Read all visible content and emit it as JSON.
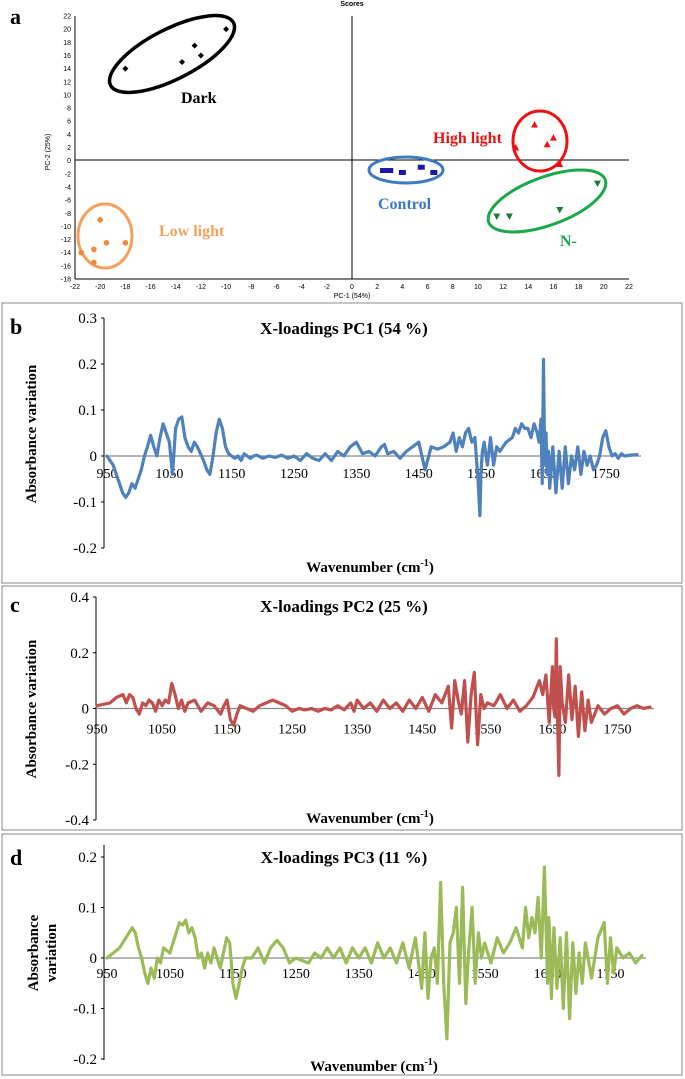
{
  "figure": {
    "panels": [
      "a",
      "b",
      "c",
      "d"
    ]
  },
  "chart_data": [
    {
      "type": "scatter",
      "panel": "a",
      "title": "Scores",
      "xlabel": "PC-1 (54%)",
      "ylabel": "PC-2 (25%)",
      "xlim": [
        -22,
        22
      ],
      "ylim": [
        -18,
        22
      ],
      "xticks": [
        -22,
        -20,
        -18,
        -16,
        -14,
        -12,
        -10,
        -8,
        -6,
        -4,
        -2,
        0,
        2,
        4,
        6,
        8,
        10,
        12,
        14,
        16,
        18,
        20,
        22
      ],
      "yticks": [
        22,
        20,
        18,
        16,
        14,
        12,
        10,
        8,
        6,
        4,
        2,
        0,
        -2,
        -4,
        -6,
        -8,
        -10,
        -12,
        -14,
        -16,
        -18
      ],
      "series": [
        {
          "name": "Dark",
          "color": "#000000",
          "marker": "diamond",
          "x": [
            -18,
            -13.5,
            -12.5,
            -12,
            -10
          ],
          "y": [
            14,
            15,
            17.5,
            16,
            20
          ]
        },
        {
          "name": "High light",
          "color": "#ee1111",
          "marker": "triangle-up",
          "x": [
            13,
            14.5,
            15.5,
            16,
            16.5
          ],
          "y": [
            2,
            5.5,
            2.5,
            3.5,
            -0.5
          ]
        },
        {
          "name": "Control",
          "color": "#1a1aa6",
          "marker": "square",
          "x": [
            2.5,
            3,
            4,
            5.5,
            6.5
          ],
          "y": [
            -1.5,
            -1.5,
            -1.8,
            -1,
            -1.8
          ]
        },
        {
          "name": "Low light",
          "color": "#f08a3a",
          "marker": "circle",
          "x": [
            -21.5,
            -20.5,
            -20.5,
            -20,
            -19.5,
            -18
          ],
          "y": [
            -14,
            -15.5,
            -13.5,
            -9,
            -12.5,
            -12.5
          ]
        },
        {
          "name": "N-",
          "color": "#1e7a3a",
          "marker": "triangle-down",
          "x": [
            11.5,
            12.5,
            16.5,
            19.5
          ],
          "y": [
            -8.5,
            -8.5,
            -7.5,
            -3.5
          ]
        }
      ],
      "labels": [
        "Dark",
        "High light",
        "Control",
        "Low light",
        "N-"
      ]
    },
    {
      "type": "line",
      "panel": "b",
      "title": "X-loadings PC1 (54 %)",
      "xlabel": "Wavenumber (cm",
      "xlabel_sup": "-1",
      "xlabel_close": ")",
      "ylabel": "Absorbance variation",
      "color": "#4f81bd",
      "xlim": [
        950,
        1800
      ],
      "ylim": [
        -0.2,
        0.3
      ],
      "xticks": [
        950,
        1050,
        1150,
        1250,
        1350,
        1450,
        1550,
        1650,
        1750
      ],
      "yticks": [
        "0.3",
        "0.2",
        "0.1",
        "0",
        "-0.1",
        "-0.2"
      ],
      "x": [
        950,
        960,
        970,
        975,
        980,
        985,
        990,
        995,
        1000,
        1005,
        1010,
        1015,
        1020,
        1025,
        1030,
        1035,
        1040,
        1045,
        1050,
        1055,
        1060,
        1065,
        1070,
        1075,
        1080,
        1085,
        1090,
        1095,
        1100,
        1105,
        1110,
        1115,
        1120,
        1125,
        1130,
        1135,
        1140,
        1145,
        1150,
        1155,
        1160,
        1165,
        1170,
        1175,
        1180,
        1185,
        1190,
        1200,
        1210,
        1220,
        1230,
        1240,
        1250,
        1260,
        1270,
        1280,
        1290,
        1300,
        1310,
        1320,
        1330,
        1340,
        1350,
        1360,
        1370,
        1380,
        1390,
        1395,
        1400,
        1410,
        1420,
        1430,
        1440,
        1450,
        1460,
        1470,
        1480,
        1490,
        1500,
        1505,
        1510,
        1515,
        1520,
        1525,
        1530,
        1535,
        1540,
        1545,
        1548,
        1550,
        1552,
        1555,
        1560,
        1565,
        1570,
        1575,
        1580,
        1590,
        1600,
        1605,
        1610,
        1615,
        1620,
        1625,
        1630,
        1635,
        1640,
        1643,
        1646,
        1648,
        1650,
        1652,
        1654,
        1656,
        1658,
        1660,
        1665,
        1670,
        1675,
        1680,
        1685,
        1690,
        1695,
        1700,
        1705,
        1710,
        1715,
        1720,
        1725,
        1730,
        1735,
        1740,
        1745,
        1750,
        1755,
        1760,
        1765,
        1770,
        1775,
        1780,
        1790,
        1800
      ],
      "y": [
        0,
        -0.02,
        -0.06,
        -0.08,
        -0.09,
        -0.08,
        -0.06,
        -0.07,
        -0.05,
        -0.03,
        0,
        0.02,
        0.045,
        0.02,
        0,
        0.04,
        0.07,
        0.05,
        0.03,
        -0.04,
        0.06,
        0.08,
        0.085,
        0.04,
        0.02,
        0.01,
        0.03,
        0.02,
        0.005,
        -0.01,
        -0.03,
        -0.04,
        0,
        0.05,
        0.08,
        0.06,
        0.02,
        0.005,
        0,
        -0.005,
        0,
        -0.01,
        0.005,
        0,
        -0.005,
        0,
        0.002,
        -0.005,
        0,
        -0.003,
        0.002,
        -0.005,
        0,
        -0.01,
        0.005,
        -0.005,
        -0.01,
        0.005,
        -0.01,
        0.01,
        0,
        0.02,
        0.03,
        0.005,
        0.01,
        0,
        0.02,
        0.025,
        0.005,
        0.01,
        -0.005,
        0.01,
        0.02,
        0.03,
        -0.03,
        0.02,
        0.015,
        0.02,
        0.03,
        0.05,
        0.01,
        0.04,
        0.02,
        0.05,
        0.06,
        0.03,
        0.04,
        -0.05,
        -0.13,
        -0.03,
        0.01,
        0.03,
        -0.02,
        0.04,
        -0.02,
        0.02,
        0.01,
        0.03,
        0.04,
        0.06,
        0.05,
        0.07,
        0.06,
        0.06,
        0.04,
        0.07,
        0.05,
        0.03,
        0.08,
        -0.06,
        0.21,
        -0.02,
        0.05,
        -0.04,
        0.01,
        -0.07,
        0.02,
        -0.08,
        0.01,
        -0.07,
        0.02,
        -0.06,
        0,
        -0.03,
        0.02,
        -0.04,
        0.01,
        -0.02,
        0,
        -0.03,
        -0.02,
        0,
        0.04,
        0.055,
        0.02,
        0,
        0.005,
        -0.005,
        0.005,
        0,
        0.002,
        0.003
      ]
    },
    {
      "type": "line",
      "panel": "c",
      "title": "X-loadings PC2 (25 %)",
      "xlabel": "Wavenumber (cm",
      "xlabel_sup": "-1",
      "xlabel_close": ")",
      "ylabel": "Absorbance variation",
      "color": "#c0504d",
      "xlim": [
        950,
        1800
      ],
      "ylim": [
        -0.4,
        0.4
      ],
      "xticks": [
        950,
        1050,
        1150,
        1250,
        1350,
        1450,
        1550,
        1650,
        1750
      ],
      "yticks": [
        "0.4",
        "0.2",
        "0",
        "-0.2",
        "-0.4"
      ],
      "x": [
        950,
        960,
        970,
        980,
        990,
        995,
        1000,
        1005,
        1010,
        1015,
        1020,
        1025,
        1030,
        1035,
        1040,
        1045,
        1050,
        1055,
        1060,
        1065,
        1070,
        1075,
        1080,
        1085,
        1090,
        1100,
        1110,
        1120,
        1130,
        1140,
        1145,
        1150,
        1155,
        1160,
        1165,
        1170,
        1180,
        1190,
        1200,
        1210,
        1220,
        1230,
        1240,
        1250,
        1260,
        1270,
        1280,
        1290,
        1300,
        1310,
        1320,
        1330,
        1340,
        1345,
        1350,
        1360,
        1370,
        1380,
        1390,
        1400,
        1410,
        1420,
        1430,
        1440,
        1450,
        1460,
        1470,
        1480,
        1490,
        1495,
        1500,
        1505,
        1510,
        1515,
        1520,
        1525,
        1530,
        1535,
        1540,
        1545,
        1550,
        1560,
        1570,
        1580,
        1590,
        1600,
        1610,
        1620,
        1630,
        1635,
        1640,
        1645,
        1650,
        1652,
        1654,
        1656,
        1658,
        1660,
        1662,
        1665,
        1670,
        1675,
        1680,
        1685,
        1690,
        1695,
        1700,
        1705,
        1710,
        1720,
        1730,
        1740,
        1750,
        1760,
        1770,
        1780,
        1790,
        1800
      ],
      "y": [
        0.01,
        0.015,
        0.02,
        0.04,
        0.05,
        0.02,
        0.05,
        0.04,
        0,
        -0.02,
        0.02,
        0.01,
        0.03,
        0.02,
        -0.01,
        0.03,
        0.01,
        0.03,
        0.02,
        0.09,
        0.05,
        0,
        0.03,
        -0.01,
        0.02,
        0.03,
        -0.01,
        0.02,
        0.01,
        -0.02,
        0.01,
        0.03,
        -0.04,
        -0.06,
        -0.02,
        0.01,
        0,
        -0.01,
        0.01,
        0.02,
        0.03,
        0.02,
        0.01,
        -0.01,
        0,
        -0.005,
        0,
        -0.01,
        0,
        -0.005,
        0.01,
        -0.005,
        0.02,
        -0.01,
        0.03,
        0,
        0.02,
        -0.01,
        0.03,
        0,
        0.02,
        -0.01,
        0.03,
        0,
        0.04,
        -0.01,
        0.05,
        0.02,
        0.08,
        -0.07,
        0.1,
        0.03,
        -0.02,
        0.1,
        -0.12,
        0.05,
        0.13,
        -0.13,
        0.05,
        0,
        0.02,
        0.01,
        0.05,
        0,
        0.03,
        -0.01,
        0.01,
        0.04,
        0.1,
        0.05,
        0.12,
        -0.05,
        0.15,
        0,
        -0.03,
        0.25,
        -0.05,
        -0.24,
        0.15,
        0.02,
        -0.05,
        0.12,
        -0.04,
        0.08,
        -0.1,
        0.06,
        -0.08,
        0.03,
        -0.05,
        0.01,
        -0.02,
        0,
        0.01,
        -0.02,
        0,
        0.01,
        0,
        0.005
      ]
    },
    {
      "type": "line",
      "panel": "d",
      "title": "X-loadings PC3 (11 %)",
      "xlabel": "Wavenumber (cm",
      "xlabel_sup": "-1",
      "xlabel_close": ")",
      "ylabel": "Absorbance variation",
      "ylabel_lines": [
        "Absorbance",
        "variation"
      ],
      "color": "#9bbb59",
      "xlim": [
        950,
        1800
      ],
      "ylim": [
        -0.2,
        0.2
      ],
      "xticks": [
        950,
        1050,
        1150,
        1250,
        1350,
        1450,
        1550,
        1650,
        1750
      ],
      "yticks": [
        "0.2",
        "0.1",
        "0",
        "-0.1",
        "-0.2"
      ],
      "x": [
        950,
        960,
        970,
        980,
        985,
        990,
        995,
        1000,
        1005,
        1010,
        1015,
        1020,
        1025,
        1030,
        1035,
        1040,
        1050,
        1060,
        1065,
        1070,
        1075,
        1080,
        1085,
        1090,
        1095,
        1100,
        1105,
        1110,
        1115,
        1120,
        1130,
        1140,
        1145,
        1150,
        1155,
        1160,
        1165,
        1170,
        1180,
        1190,
        1200,
        1210,
        1220,
        1230,
        1240,
        1250,
        1260,
        1270,
        1280,
        1290,
        1300,
        1310,
        1320,
        1330,
        1340,
        1350,
        1360,
        1370,
        1380,
        1390,
        1400,
        1410,
        1420,
        1430,
        1440,
        1450,
        1455,
        1460,
        1465,
        1470,
        1475,
        1480,
        1485,
        1490,
        1495,
        1500,
        1505,
        1510,
        1515,
        1520,
        1525,
        1530,
        1535,
        1540,
        1545,
        1550,
        1555,
        1560,
        1570,
        1580,
        1590,
        1600,
        1610,
        1615,
        1620,
        1625,
        1630,
        1635,
        1640,
        1645,
        1650,
        1652,
        1654,
        1656,
        1660,
        1665,
        1670,
        1675,
        1680,
        1685,
        1690,
        1695,
        1700,
        1705,
        1710,
        1720,
        1730,
        1740,
        1745,
        1750,
        1755,
        1760,
        1770,
        1780,
        1790,
        1800
      ],
      "y": [
        0,
        0.01,
        0.02,
        0.04,
        0.05,
        0.06,
        0.05,
        0.02,
        0,
        -0.03,
        -0.05,
        -0.02,
        -0.04,
        0,
        -0.01,
        0.02,
        0.01,
        0.05,
        0.07,
        0.065,
        0.075,
        0.05,
        0.06,
        0.04,
        0,
        0.01,
        -0.02,
        0.01,
        -0.01,
        0.02,
        -0.02,
        0.04,
        0.03,
        -0.05,
        -0.08,
        -0.05,
        -0.02,
        0,
        0,
        0.02,
        -0.01,
        0.02,
        0.035,
        0.02,
        -0.01,
        0,
        -0.005,
        -0.01,
        0.01,
        0,
        0.02,
        0,
        0.02,
        -0.01,
        0.02,
        0,
        0.02,
        -0.01,
        0.03,
        0,
        0.02,
        -0.01,
        0.03,
        -0.02,
        0.04,
        -0.06,
        0.05,
        -0.08,
        0,
        0.02,
        -0.05,
        0.15,
        -0.05,
        -0.16,
        0.03,
        0.05,
        0.1,
        -0.05,
        0.14,
        -0.09,
        0.02,
        0.1,
        -0.05,
        0.05,
        0,
        0.03,
        0.01,
        -0.01,
        0.04,
        0.01,
        0.03,
        0.06,
        0.02,
        0.1,
        0.04,
        0.08,
        0.05,
        0.12,
        0,
        0.18,
        -0.05,
        0.08,
        0.02,
        -0.08,
        0.06,
        -0.06,
        0.04,
        -0.1,
        0.05,
        -0.12,
        0.03,
        -0.07,
        0.01,
        -0.05,
        0.03,
        -0.04,
        0.04,
        0.07,
        -0.05,
        0.04,
        -0.03,
        0.02,
        0,
        0.01,
        -0.01,
        0.005
      ]
    }
  ]
}
